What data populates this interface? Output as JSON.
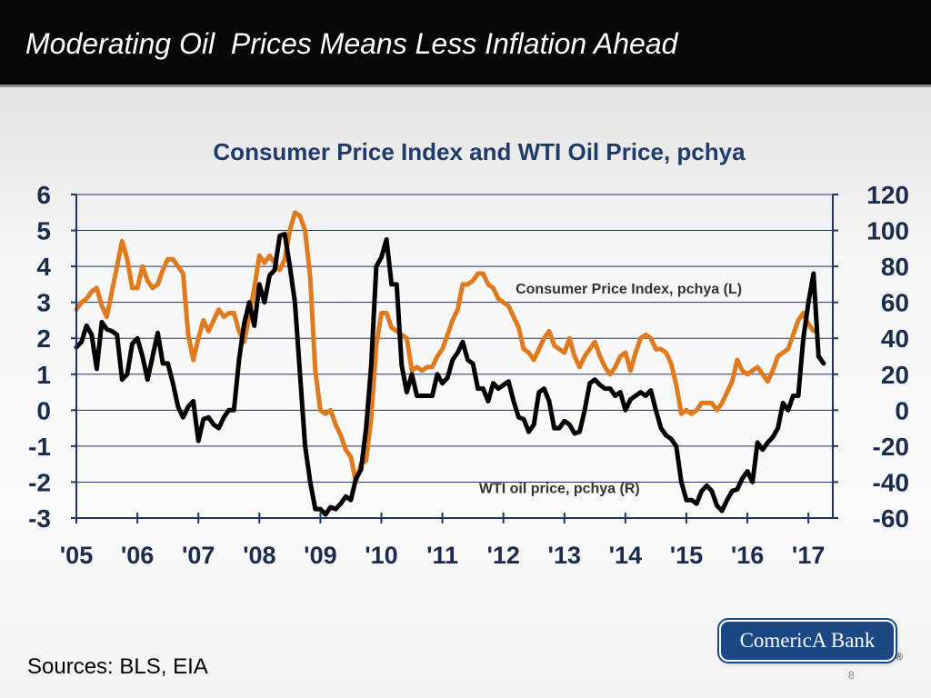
{
  "slide": {
    "title": "Moderating Oil  Prices Means Less Inflation Ahead",
    "sources": "Sources: BLS, EIA",
    "logo_text": "ComericA Bank",
    "registered_mark": "®",
    "page_number": "8"
  },
  "colors": {
    "cpi_line": "#e07a1f",
    "wti_line": "#000000",
    "axis": "#1c3566",
    "title_bar": "#060606",
    "logo": "#1c4785"
  },
  "chart_data": {
    "type": "line",
    "title": "Consumer Price Index and WTI Oil Price, pchya",
    "x_start": 2005.0,
    "x_step": 0.0833333,
    "xlim": [
      2005.0,
      2017.4
    ],
    "xticks": [
      2005,
      2006,
      2007,
      2008,
      2009,
      2010,
      2011,
      2012,
      2013,
      2014,
      2015,
      2016,
      2017
    ],
    "xtick_labels": [
      "'05",
      "'06",
      "'07",
      "'08",
      "'09",
      "'10",
      "'11",
      "'12",
      "'13",
      "'14",
      "'15",
      "'16",
      "'17"
    ],
    "y_left": {
      "range": [
        -3,
        6
      ],
      "ticks": [
        6,
        5,
        4,
        3,
        2,
        1,
        0,
        -1,
        -2,
        -3
      ],
      "tick_labels": [
        "6",
        "5",
        "4",
        "3",
        "2",
        "1",
        "0",
        "-1",
        "-2",
        "-3"
      ]
    },
    "y_right": {
      "range": [
        -60,
        120
      ],
      "ticks": [
        120,
        100,
        80,
        60,
        40,
        20,
        0,
        -20,
        -40,
        -60
      ],
      "tick_labels": [
        "120",
        "100",
        "80",
        "60",
        "40",
        "20",
        "0",
        "-20",
        "-40",
        "-60"
      ]
    },
    "grid": true,
    "series": [
      {
        "name": "Consumer Price Index, pchya (L)",
        "axis": "left",
        "label_anchor": [
          2012.2,
          3.25
        ],
        "values": [
          2.8,
          3.0,
          3.1,
          3.3,
          3.4,
          2.9,
          2.6,
          3.3,
          4.0,
          4.7,
          4.2,
          3.4,
          3.4,
          4.0,
          3.6,
          3.4,
          3.5,
          3.9,
          4.2,
          4.2,
          4.0,
          3.8,
          2.1,
          1.4,
          2.0,
          2.5,
          2.2,
          2.5,
          2.8,
          2.6,
          2.7,
          2.7,
          2.2,
          1.9,
          2.6,
          3.4,
          4.3,
          4.1,
          4.3,
          4.1,
          3.9,
          4.2,
          5.0,
          5.5,
          5.4,
          5.0,
          3.7,
          1.1,
          0.0,
          -0.1,
          0.0,
          -0.4,
          -0.7,
          -1.1,
          -1.3,
          -2.0,
          -1.5,
          -1.4,
          -0.2,
          1.8,
          2.7,
          2.7,
          2.3,
          2.2,
          2.1,
          2.0,
          1.1,
          1.2,
          1.1,
          1.2,
          1.2,
          1.5,
          1.7,
          2.1,
          2.5,
          2.8,
          3.5,
          3.5,
          3.6,
          3.8,
          3.8,
          3.5,
          3.4,
          3.1,
          3.0,
          2.9,
          2.6,
          2.3,
          1.7,
          1.6,
          1.4,
          1.7,
          2.0,
          2.2,
          1.8,
          1.7,
          1.6,
          2.0,
          1.5,
          1.2,
          1.5,
          1.7,
          1.9,
          1.5,
          1.2,
          1.0,
          1.2,
          1.5,
          1.6,
          1.1,
          1.6,
          2.0,
          2.1,
          2.0,
          1.7,
          1.7,
          1.6,
          1.3,
          0.7,
          -0.1,
          0.0,
          -0.1,
          0.0,
          0.2,
          0.2,
          0.2,
          0.0,
          0.2,
          0.5,
          0.8,
          1.4,
          1.1,
          1.0,
          1.1,
          1.2,
          1.0,
          0.8,
          1.1,
          1.5,
          1.6,
          1.7,
          2.1,
          2.5,
          2.7,
          2.4,
          2.2
        ]
      },
      {
        "name": "WTI oil price, pchya (R)",
        "axis": "right",
        "label_anchor": [
          2011.6,
          -46
        ],
        "values": [
          35,
          38,
          47,
          42,
          23,
          49,
          45,
          44,
          42,
          17,
          20,
          37,
          40,
          30,
          17,
          30,
          43,
          26,
          26,
          15,
          2,
          -4,
          2,
          5,
          -17,
          -5,
          -4,
          -8,
          -10,
          -4,
          0,
          0,
          28,
          48,
          60,
          47,
          70,
          60,
          75,
          78,
          97,
          98,
          80,
          60,
          20,
          -20,
          -40,
          -55,
          -55,
          -58,
          -54,
          -55,
          -52,
          -48,
          -50,
          -38,
          -33,
          -10,
          25,
          80,
          85,
          95,
          70,
          70,
          25,
          10,
          20,
          8,
          8,
          8,
          8,
          20,
          15,
          18,
          28,
          32,
          38,
          28,
          26,
          12,
          12,
          5,
          15,
          12,
          14,
          16,
          5,
          -4,
          -5,
          -12,
          -8,
          10,
          12,
          5,
          -10,
          -10,
          -6,
          -8,
          -13,
          -12,
          0,
          15,
          17,
          14,
          12,
          12,
          8,
          10,
          0,
          6,
          8,
          10,
          8,
          11,
          0,
          -10,
          -14,
          -16,
          -20,
          -40,
          -50,
          -50,
          -52,
          -45,
          -42,
          -45,
          -53,
          -56,
          -50,
          -45,
          -44,
          -38,
          -34,
          -40,
          -18,
          -22,
          -18,
          -15,
          -10,
          4,
          0,
          8,
          8,
          40,
          60,
          76,
          30,
          26
        ]
      }
    ]
  }
}
